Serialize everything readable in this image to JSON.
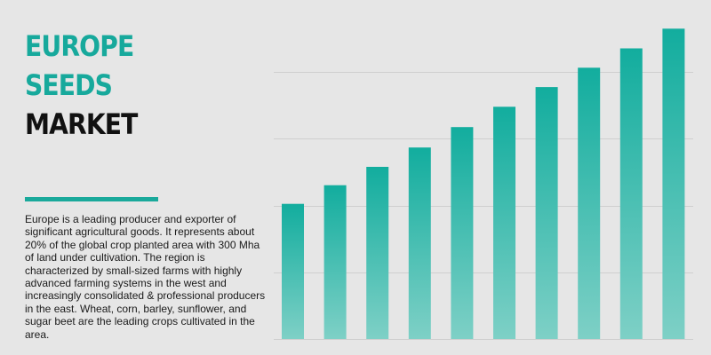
{
  "heading": {
    "line1": "EUROPE",
    "line2": "SEEDS",
    "line3": "MARKET"
  },
  "description": "Europe is a leading producer and exporter of significant agricultural goods. It represents about 20% of the global crop planted area with 300 Mha of land under cultivation. The region is characterized by small-sized farms with highly advanced farming systems in the west and increasingly consolidated & professional producers in the east. Wheat, corn, barley, sunflower, and sugar beet are the leading crops cultivated in the area.",
  "colors": {
    "accent": "#17a99c",
    "bar_top": "#12ad9e",
    "bar_bottom": "#7ed0c6",
    "gridline": "#cfcfcf",
    "background": "#e6e6e6"
  },
  "chart_data": {
    "type": "bar",
    "categories": [
      "",
      "",
      "",
      "",
      "",
      "",
      "",
      "",
      "",
      ""
    ],
    "values": [
      40.5,
      46.1,
      51.6,
      57.4,
      63.5,
      69.6,
      75.5,
      81.3,
      87.1,
      93.0
    ],
    "ylim": [
      0,
      100
    ],
    "grid": true,
    "gridlines_at": [
      20,
      40,
      60,
      80
    ],
    "title": "",
    "xlabel": "",
    "ylabel": ""
  }
}
